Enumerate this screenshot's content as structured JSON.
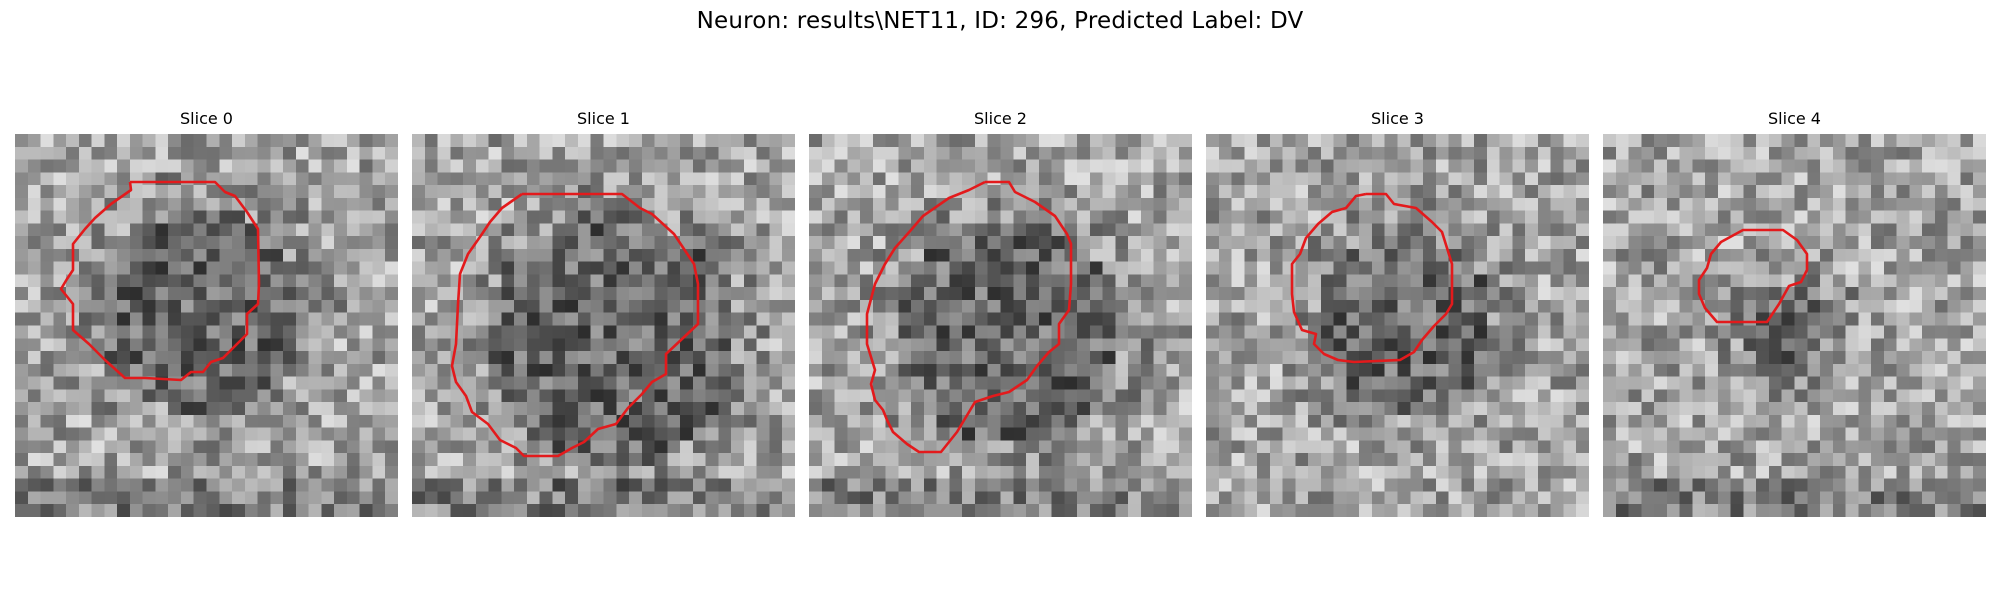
{
  "figure": {
    "title": "Neuron: results\\NET11, ID: 296, Predicted Label: DV",
    "contour_color": "#e31a1c"
  },
  "panels": [
    {
      "title": "Slice 0"
    },
    {
      "title": "Slice 1"
    },
    {
      "title": "Slice 2"
    },
    {
      "title": "Slice 3"
    },
    {
      "title": "Slice 4"
    }
  ]
}
